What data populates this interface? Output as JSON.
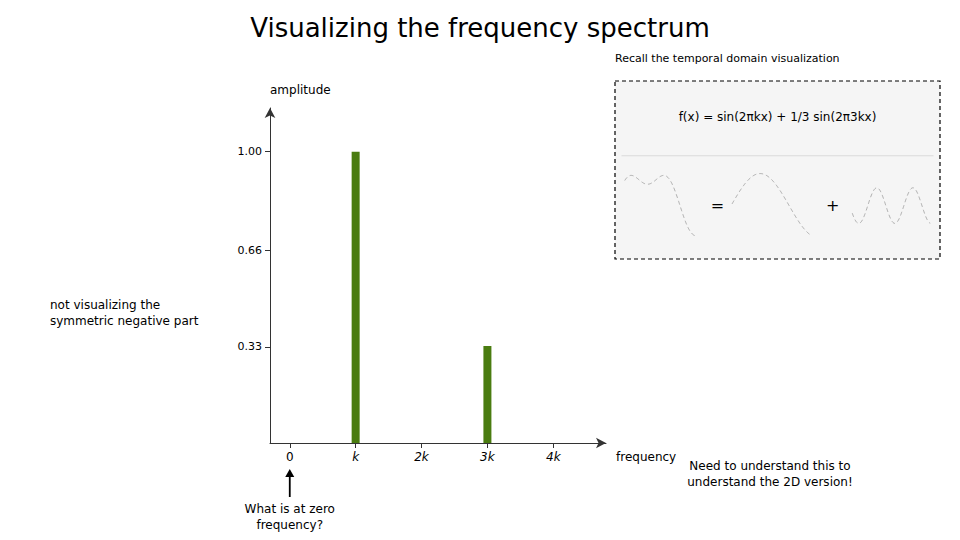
{
  "chart_data": {
    "type": "bar",
    "title": "Visualizing the frequency spectrum",
    "x": [
      1,
      3
    ],
    "values": [
      1.0,
      0.333
    ],
    "color": "#4a7c10",
    "xlabel": "frequency",
    "ylabel": "amplitude",
    "xlim": [
      -0.3,
      4.8
    ],
    "xticks": [
      0,
      {
        "value": 1,
        "label": "k"
      },
      {
        "value": 2,
        "label": "2k"
      },
      {
        "value": 3,
        "label": "3k"
      },
      {
        "value": 4,
        "label": "4k"
      }
    ],
    "ylim": [
      0,
      1.15
    ],
    "yticks": [
      0.33,
      0.66,
      {
        "value": 1.0,
        "label": "1.00"
      }
    ],
    "grid": false,
    "annotations": [
      "Recall the temporal domain visualization",
      "not visualizing the\nsymmetric negative part",
      "What is at zero\nfrequency?",
      "Need to understand this to\nunderstand the 2D version!",
      "f(x) = sin(2πkx) + 1/3 sin(2π3kx)",
      "=",
      "+"
    ]
  }
}
